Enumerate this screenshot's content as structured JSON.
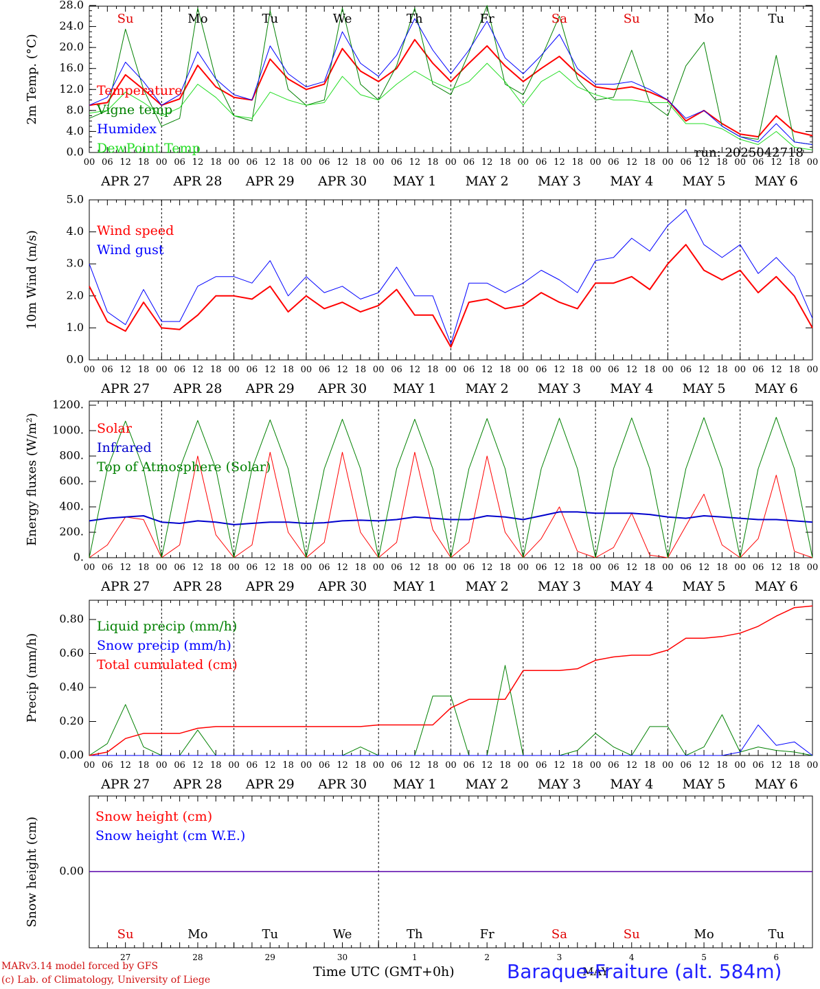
{
  "run_label": "run: 2025042718",
  "hour_ticks": [
    "00",
    "06",
    "12",
    "18"
  ],
  "day_dates": [
    "APR 27",
    "APR 28",
    "APR 29",
    "APR 30",
    "MAY  1",
    "MAY  2",
    "MAY  3",
    "MAY  4",
    "MAY  5",
    "MAY  6"
  ],
  "weekdays": [
    "Su",
    "Mo",
    "Tu",
    "We",
    "Th",
    "Fr",
    "Sa",
    "Su",
    "Mo",
    "Tu"
  ],
  "weekday_colors": [
    "#e00000",
    "#000000",
    "#000000",
    "#000000",
    "#000000",
    "#000000",
    "#e00000",
    "#e00000",
    "#000000",
    "#000000"
  ],
  "day_numbers": [
    "27",
    "28",
    "29",
    "30",
    "1",
    "2",
    "3",
    "4",
    "5",
    "6"
  ],
  "month_label": "MAY",
  "xaxis_title": "Time UTC (GMT+0h)",
  "credit_line1": "MARv3.14 model forced by GFS",
  "credit_line2": "(c) Lab. of Climatology, University of Liege",
  "station": "Baraque-Fraiture (alt. 584m)",
  "chart_data": [
    {
      "type": "line",
      "ylabel": "2m Temp. (°C)",
      "ylim": [
        0,
        28
      ],
      "yticks": [
        "0.0",
        "4.0",
        "8.0",
        "12.0",
        "16.0",
        "20.0",
        "24.0",
        "28.0"
      ],
      "x_hours": [
        0,
        6,
        12,
        18,
        24,
        30,
        36,
        42,
        48,
        54,
        60,
        66,
        72,
        78,
        84,
        90,
        96,
        102,
        108,
        114,
        120,
        126,
        132,
        138,
        144,
        150,
        156,
        162,
        168,
        174,
        180,
        186,
        192,
        198,
        204,
        210,
        216,
        222,
        228,
        234,
        240
      ],
      "series": [
        {
          "name": "Temperature",
          "color": "#ff0000",
          "width": 2,
          "values": [
            9.0,
            9.5,
            14.8,
            12.0,
            9.0,
            10.2,
            16.6,
            12.5,
            10.5,
            10.0,
            17.8,
            14.0,
            12.0,
            13.0,
            19.8,
            15.5,
            13.5,
            16.0,
            21.5,
            17.0,
            13.5,
            17.0,
            20.3,
            16.5,
            13.5,
            16.0,
            18.3,
            15.0,
            12.5,
            12.0,
            12.5,
            11.5,
            10.0,
            6.0,
            8.0,
            5.5,
            3.5,
            3.0,
            7.0,
            4.0,
            3.2
          ]
        },
        {
          "name": "Vigne temp",
          "color": "#008000",
          "width": 1,
          "values": [
            6.5,
            8.0,
            23.5,
            12.0,
            5.0,
            6.5,
            27.5,
            14.0,
            7.0,
            6.0,
            27.0,
            12.0,
            9.0,
            10.0,
            27.5,
            13.0,
            10.0,
            16.5,
            27.5,
            13.0,
            11.0,
            19.0,
            28.0,
            13.0,
            11.0,
            18.0,
            26.0,
            14.0,
            10.0,
            10.5,
            19.5,
            9.5,
            7.0,
            16.5,
            21.0,
            5.0,
            3.0,
            2.5,
            18.5,
            2.0,
            1.5
          ]
        },
        {
          "name": "Humidex",
          "color": "#0000ff",
          "width": 1,
          "values": [
            9.0,
            10.5,
            17.2,
            13.5,
            9.0,
            11.0,
            19.2,
            14.0,
            11.0,
            10.0,
            20.3,
            15.0,
            12.5,
            13.5,
            23.0,
            17.0,
            14.5,
            18.5,
            25.5,
            19.5,
            15.0,
            19.5,
            25.0,
            18.0,
            15.0,
            18.5,
            22.5,
            16.0,
            13.0,
            13.0,
            13.5,
            12.0,
            10.0,
            6.5,
            8.0,
            5.0,
            3.0,
            2.0,
            5.5,
            2.0,
            1.5
          ]
        },
        {
          "name": "DewPoint Temp",
          "color": "#22dd22",
          "width": 1,
          "values": [
            7.5,
            8.0,
            11.5,
            9.5,
            7.0,
            8.5,
            13.0,
            10.5,
            7.0,
            6.5,
            11.5,
            10.0,
            9.0,
            9.5,
            14.5,
            11.0,
            10.0,
            13.0,
            15.5,
            13.5,
            12.0,
            13.5,
            17.0,
            13.5,
            9.0,
            13.5,
            15.5,
            12.5,
            11.0,
            10.0,
            10.0,
            9.5,
            9.5,
            5.5,
            5.5,
            4.5,
            2.5,
            1.5,
            4.0,
            1.0,
            0.5
          ]
        }
      ],
      "legend_position": "left"
    },
    {
      "type": "line",
      "ylabel": "10m Wind (m/s)",
      "ylim": [
        0,
        5
      ],
      "yticks": [
        "0.0",
        "1.0",
        "2.0",
        "3.0",
        "4.0",
        "5.0"
      ],
      "x_hours": [
        0,
        6,
        12,
        18,
        24,
        30,
        36,
        42,
        48,
        54,
        60,
        66,
        72,
        78,
        84,
        90,
        96,
        102,
        108,
        114,
        120,
        126,
        132,
        138,
        144,
        150,
        156,
        162,
        168,
        174,
        180,
        186,
        192,
        198,
        204,
        210,
        216,
        222,
        228,
        234,
        240
      ],
      "series": [
        {
          "name": "Wind speed",
          "color": "#ff0000",
          "width": 2,
          "values": [
            2.3,
            1.2,
            0.9,
            1.8,
            1.0,
            0.95,
            1.4,
            2.0,
            2.0,
            1.9,
            2.3,
            1.5,
            2.0,
            1.6,
            1.8,
            1.5,
            1.7,
            2.2,
            1.4,
            1.4,
            0.4,
            1.8,
            1.9,
            1.6,
            1.7,
            2.1,
            1.8,
            1.6,
            2.4,
            2.4,
            2.6,
            2.2,
            3.0,
            3.6,
            2.8,
            2.5,
            2.8,
            2.1,
            2.6,
            2.0,
            1.0
          ]
        },
        {
          "name": "Wind gust",
          "color": "#0000ff",
          "width": 1,
          "values": [
            3.0,
            1.5,
            1.1,
            2.2,
            1.2,
            1.2,
            2.3,
            2.6,
            2.6,
            2.4,
            3.1,
            2.0,
            2.6,
            2.1,
            2.3,
            1.9,
            2.1,
            2.9,
            2.0,
            2.0,
            0.5,
            2.4,
            2.4,
            2.1,
            2.4,
            2.8,
            2.5,
            2.1,
            3.1,
            3.2,
            3.8,
            3.4,
            4.2,
            4.7,
            3.6,
            3.2,
            3.6,
            2.7,
            3.2,
            2.6,
            1.3
          ]
        }
      ],
      "legend_position": "left"
    },
    {
      "type": "line",
      "ylabel": "Energy fluxes (W/m²)",
      "ylim": [
        0,
        1200
      ],
      "yticks": [
        "0.",
        "200.",
        "400.",
        "600.",
        "800.",
        "1000.",
        "1200."
      ],
      "x_hours": [
        0,
        6,
        12,
        18,
        24,
        30,
        36,
        42,
        48,
        54,
        60,
        66,
        72,
        78,
        84,
        90,
        96,
        102,
        108,
        114,
        120,
        126,
        132,
        138,
        144,
        150,
        156,
        162,
        168,
        174,
        180,
        186,
        192,
        198,
        204,
        210,
        216,
        222,
        228,
        234,
        240
      ],
      "series": [
        {
          "name": "Solar",
          "color": "#ff0000",
          "width": 1,
          "values": [
            0,
            100,
            320,
            300,
            0,
            100,
            800,
            180,
            0,
            100,
            830,
            200,
            0,
            120,
            830,
            200,
            0,
            120,
            830,
            220,
            0,
            120,
            800,
            200,
            0,
            150,
            400,
            50,
            0,
            80,
            350,
            20,
            0,
            250,
            500,
            100,
            0,
            150,
            650,
            50,
            0
          ]
        },
        {
          "name": "Infrared",
          "color": "#0000cc",
          "width": 2,
          "values": [
            290,
            310,
            320,
            330,
            280,
            270,
            290,
            280,
            260,
            270,
            280,
            280,
            270,
            275,
            290,
            295,
            290,
            300,
            320,
            310,
            300,
            300,
            330,
            320,
            300,
            330,
            360,
            360,
            350,
            350,
            350,
            340,
            320,
            310,
            330,
            320,
            310,
            300,
            300,
            290,
            280
          ]
        },
        {
          "name": "Top of Atmosphere (Solar)",
          "color": "#008000",
          "width": 1,
          "values": [
            0,
            700,
            1075,
            700,
            0,
            700,
            1080,
            700,
            0,
            700,
            1085,
            700,
            0,
            700,
            1090,
            700,
            0,
            700,
            1090,
            700,
            0,
            700,
            1095,
            700,
            0,
            700,
            1098,
            700,
            0,
            700,
            1100,
            700,
            0,
            700,
            1102,
            700,
            0,
            700,
            1105,
            700,
            0
          ]
        }
      ],
      "legend_position": "left"
    },
    {
      "type": "line",
      "ylabel": "Precip (mm/h)",
      "ylim": [
        0,
        0.9
      ],
      "yticks": [
        "0.00",
        "0.20",
        "0.40",
        "0.60",
        "0.80"
      ],
      "x_hours": [
        0,
        6,
        12,
        18,
        24,
        30,
        36,
        42,
        48,
        54,
        60,
        66,
        72,
        78,
        84,
        90,
        96,
        102,
        108,
        114,
        120,
        126,
        132,
        138,
        144,
        150,
        156,
        162,
        168,
        174,
        180,
        186,
        192,
        198,
        204,
        210,
        216,
        222,
        228,
        234,
        240
      ],
      "series": [
        {
          "name": "Liquid precip (mm/h)",
          "color": "#008000",
          "width": 1,
          "values": [
            0,
            0.07,
            0.3,
            0.05,
            0,
            0,
            0.15,
            0,
            0,
            0,
            0,
            0,
            0,
            0,
            0,
            0.05,
            0,
            0,
            0,
            0.35,
            0.35,
            0,
            0,
            0.53,
            0,
            0,
            0,
            0.03,
            0.13,
            0.05,
            0,
            0.17,
            0.17,
            0,
            0.05,
            0.24,
            0.02,
            0.05,
            0.03,
            0.02,
            0
          ]
        },
        {
          "name": "Snow precip (mm/h)",
          "color": "#0000ff",
          "width": 1,
          "values": [
            0,
            0,
            0,
            0,
            0,
            0,
            0,
            0,
            0,
            0,
            0,
            0,
            0,
            0,
            0,
            0,
            0,
            0,
            0,
            0,
            0,
            0,
            0,
            0,
            0,
            0,
            0,
            0,
            0,
            0,
            0,
            0,
            0,
            0,
            0,
            0,
            0.02,
            0.18,
            0.06,
            0.08,
            0
          ]
        },
        {
          "name": "Total cumulated (cm)",
          "color": "#ff0000",
          "width": 1.5,
          "values": [
            0,
            0.02,
            0.1,
            0.13,
            0.13,
            0.13,
            0.16,
            0.17,
            0.17,
            0.17,
            0.17,
            0.17,
            0.17,
            0.17,
            0.17,
            0.17,
            0.18,
            0.18,
            0.18,
            0.18,
            0.28,
            0.33,
            0.33,
            0.33,
            0.5,
            0.5,
            0.5,
            0.51,
            0.56,
            0.58,
            0.59,
            0.59,
            0.62,
            0.69,
            0.69,
            0.7,
            0.72,
            0.76,
            0.82,
            0.87,
            0.88
          ]
        }
      ],
      "legend_position": "left"
    },
    {
      "type": "line",
      "ylabel": "Snow height (cm)",
      "ylim": [
        -1,
        1
      ],
      "yticks": [
        "0.00"
      ],
      "x_hours": [
        0,
        240
      ],
      "series": [
        {
          "name": "Snow height (cm)",
          "color": "#ff0000",
          "width": 1.5,
          "values": [
            0,
            0
          ]
        },
        {
          "name": "Snow height (cm W.E.)",
          "color": "#0000ff",
          "width": 1,
          "values": [
            0,
            0
          ]
        }
      ],
      "legend_position": "left"
    }
  ]
}
